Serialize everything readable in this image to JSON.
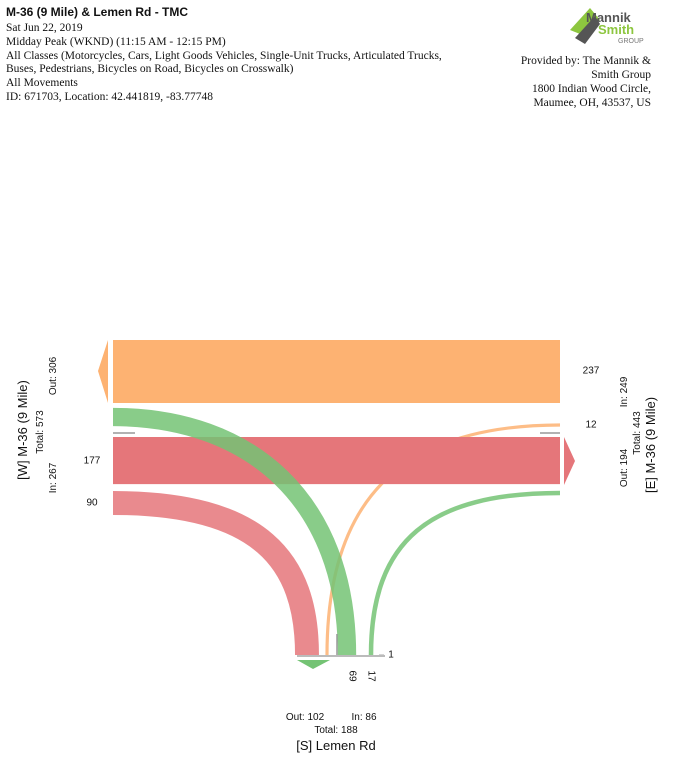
{
  "header": {
    "title": "M-36 (9 Mile) & Lemen Rd - TMC",
    "date": "Sat Jun 22, 2019",
    "period": "Midday Peak (WKND) (11:15 AM - 12:15 PM)",
    "classes": [
      "All Classes (Motorcycles, Cars, Light Goods Vehicles, Single-Unit Trucks, Articulated Trucks,",
      "Buses, Pedestrians, Bicycles on Road, Bicycles on Crosswalk)"
    ],
    "movements": "All Movements",
    "id_location": "ID: 671703, Location: 42.441819, -83.77748"
  },
  "logo": {
    "line1": "Mannik",
    "line2": "Smith",
    "line3": "GROUP"
  },
  "provider": [
    "Provided by: The Mannik &",
    "Smith Group",
    "1800 Indian Wood Circle,",
    "Maumee, OH, 43537, US"
  ],
  "legs": {
    "west": {
      "name": "[W] M-36 (9 Mile)",
      "out": "Out: 306",
      "total": "Total: 573",
      "in": "In: 267"
    },
    "east": {
      "name": "[E] M-36 (9 Mile)",
      "in": "In: 249",
      "total": "Total: 443",
      "out": "Out: 194"
    },
    "south": {
      "name": "[S] Lemen Rd",
      "out": "Out: 102",
      "in": "In: 86",
      "total": "Total: 188"
    }
  },
  "flows": [
    {
      "value": 237,
      "color": "#fdb272"
    },
    {
      "value": 12,
      "color": "#fdb272"
    },
    {
      "value": 177,
      "color": "#e5767a"
    },
    {
      "value": 90,
      "color": "#e5767a"
    },
    {
      "value": 69,
      "color": "#74c374"
    },
    {
      "value": 17,
      "color": "#74c374"
    },
    {
      "value": 1,
      "color": "#cccccc"
    }
  ]
}
